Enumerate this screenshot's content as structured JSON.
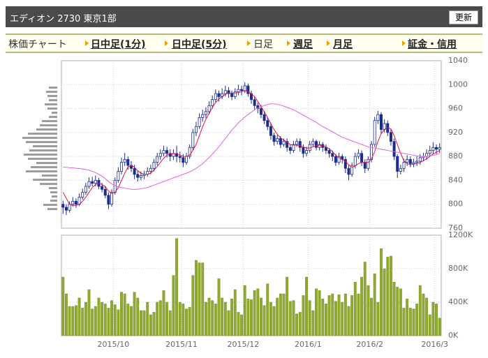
{
  "header": {
    "title": "エディオン 2730 東京1部",
    "button": "更新"
  },
  "nav": {
    "label": "株価チャート",
    "tabs": [
      "日中足(1分)",
      "日中足(5分)",
      "日足",
      "週足",
      "月足",
      "証金・信用"
    ]
  },
  "chart_data": [
    {
      "type": "candlestick",
      "color": "#1c2d8c",
      "ohlc": [
        [
          800,
          806,
          784,
          795
        ],
        [
          795,
          800,
          782,
          790
        ],
        [
          790,
          805,
          786,
          800
        ],
        [
          800,
          812,
          796,
          805
        ],
        [
          805,
          810,
          794,
          800
        ],
        [
          800,
          818,
          797,
          812
        ],
        [
          812,
          826,
          808,
          820
        ],
        [
          820,
          836,
          816,
          830
        ],
        [
          830,
          845,
          826,
          838
        ],
        [
          838,
          846,
          830,
          835
        ],
        [
          835,
          848,
          830,
          840
        ],
        [
          840,
          844,
          825,
          830
        ],
        [
          830,
          836,
          820,
          825
        ],
        [
          825,
          830,
          810,
          815
        ],
        [
          815,
          820,
          792,
          800
        ],
        [
          800,
          825,
          796,
          820
        ],
        [
          820,
          845,
          816,
          840
        ],
        [
          840,
          862,
          836,
          855
        ],
        [
          855,
          878,
          850,
          870
        ],
        [
          870,
          886,
          864,
          875
        ],
        [
          875,
          880,
          858,
          865
        ],
        [
          865,
          872,
          854,
          860
        ],
        [
          860,
          866,
          842,
          850
        ],
        [
          850,
          856,
          838,
          845
        ],
        [
          845,
          855,
          840,
          848
        ],
        [
          848,
          856,
          842,
          850
        ],
        [
          850,
          862,
          846,
          855
        ],
        [
          855,
          866,
          850,
          860
        ],
        [
          860,
          876,
          855,
          870
        ],
        [
          870,
          886,
          865,
          880
        ],
        [
          880,
          892,
          874,
          885
        ],
        [
          885,
          898,
          880,
          890
        ],
        [
          890,
          896,
          878,
          885
        ],
        [
          885,
          892,
          872,
          880
        ],
        [
          880,
          892,
          874,
          885
        ],
        [
          885,
          898,
          870,
          880
        ],
        [
          880,
          888,
          870,
          878
        ],
        [
          878,
          884,
          862,
          870
        ],
        [
          870,
          886,
          866,
          880
        ],
        [
          880,
          900,
          876,
          895
        ],
        [
          895,
          926,
          890,
          920
        ],
        [
          920,
          938,
          914,
          930
        ],
        [
          930,
          952,
          926,
          945
        ],
        [
          945,
          958,
          938,
          950
        ],
        [
          950,
          962,
          944,
          955
        ],
        [
          955,
          972,
          950,
          965
        ],
        [
          965,
          982,
          960,
          975
        ],
        [
          975,
          992,
          970,
          985
        ],
        [
          985,
          990,
          972,
          980
        ],
        [
          980,
          994,
          976,
          985
        ],
        [
          985,
          998,
          980,
          990
        ],
        [
          990,
          996,
          978,
          985
        ],
        [
          985,
          990,
          974,
          980
        ],
        [
          980,
          994,
          976,
          988
        ],
        [
          988,
          1000,
          982,
          992
        ],
        [
          992,
          998,
          982,
          990
        ],
        [
          990,
          1004,
          986,
          998
        ],
        [
          998,
          1002,
          980,
          985
        ],
        [
          985,
          990,
          968,
          975
        ],
        [
          975,
          980,
          958,
          965
        ],
        [
          965,
          970,
          952,
          960
        ],
        [
          960,
          966,
          944,
          950
        ],
        [
          950,
          956,
          934,
          940
        ],
        [
          940,
          946,
          924,
          930
        ],
        [
          930,
          936,
          908,
          915
        ],
        [
          915,
          920,
          898,
          905
        ],
        [
          905,
          916,
          900,
          910
        ],
        [
          910,
          914,
          894,
          900
        ],
        [
          900,
          910,
          896,
          905
        ],
        [
          905,
          910,
          888,
          895
        ],
        [
          895,
          900,
          884,
          890
        ],
        [
          890,
          906,
          886,
          900
        ],
        [
          900,
          910,
          896,
          905
        ],
        [
          905,
          910,
          888,
          895
        ],
        [
          895,
          900,
          878,
          885
        ],
        [
          885,
          896,
          880,
          890
        ],
        [
          890,
          906,
          886,
          900
        ],
        [
          900,
          910,
          896,
          905
        ],
        [
          905,
          908,
          890,
          895
        ],
        [
          895,
          906,
          890,
          900
        ],
        [
          900,
          904,
          888,
          895
        ],
        [
          895,
          900,
          884,
          890
        ],
        [
          890,
          894,
          878,
          885
        ],
        [
          885,
          890,
          872,
          880
        ],
        [
          880,
          884,
          864,
          870
        ],
        [
          870,
          886,
          866,
          880
        ],
        [
          880,
          884,
          868,
          875
        ],
        [
          875,
          880,
          852,
          860
        ],
        [
          860,
          866,
          840,
          850
        ],
        [
          850,
          870,
          846,
          865
        ],
        [
          865,
          886,
          860,
          880
        ],
        [
          880,
          892,
          876,
          885
        ],
        [
          885,
          890,
          864,
          870
        ],
        [
          870,
          875,
          852,
          860
        ],
        [
          860,
          880,
          856,
          875
        ],
        [
          875,
          906,
          870,
          900
        ],
        [
          900,
          946,
          896,
          940
        ],
        [
          940,
          956,
          934,
          950
        ],
        [
          950,
          954,
          918,
          925
        ],
        [
          925,
          942,
          920,
          935
        ],
        [
          935,
          940,
          914,
          920
        ],
        [
          920,
          926,
          898,
          905
        ],
        [
          905,
          910,
          874,
          880
        ],
        [
          880,
          884,
          844,
          855
        ],
        [
          855,
          866,
          850,
          860
        ],
        [
          860,
          876,
          854,
          870
        ],
        [
          870,
          882,
          864,
          875
        ],
        [
          875,
          880,
          862,
          868
        ],
        [
          868,
          876,
          862,
          870
        ],
        [
          870,
          880,
          864,
          872
        ],
        [
          872,
          884,
          866,
          878
        ],
        [
          878,
          886,
          872,
          880
        ],
        [
          880,
          892,
          874,
          885
        ],
        [
          885,
          898,
          880,
          890
        ],
        [
          890,
          904,
          884,
          895
        ],
        [
          895,
          900,
          884,
          892
        ],
        [
          892,
          902,
          886,
          895
        ]
      ],
      "series": [
        {
          "color": "#e0104a",
          "values": [
            820,
            810,
            800,
            798,
            798,
            800,
            805,
            812,
            820,
            828,
            833,
            835,
            833,
            830,
            822,
            818,
            820,
            828,
            840,
            852,
            862,
            865,
            862,
            856,
            852,
            850,
            850,
            852,
            857,
            863,
            870,
            877,
            882,
            884,
            885,
            884,
            882,
            880,
            880,
            882,
            890,
            900,
            915,
            930,
            942,
            952,
            962,
            970,
            976,
            980,
            984,
            986,
            986,
            986,
            987,
            988,
            990,
            988,
            985,
            980,
            972,
            963,
            955,
            945,
            935,
            925,
            917,
            911,
            907,
            904,
            900,
            899,
            899,
            898,
            896,
            894,
            894,
            896,
            898,
            899,
            898,
            896,
            893,
            888,
            882,
            878,
            875,
            872,
            866,
            862,
            864,
            868,
            870,
            870,
            870,
            876,
            888,
            905,
            918,
            925,
            928,
            926,
            915,
            900,
            885,
            873,
            868,
            866,
            867,
            868,
            870,
            873,
            876,
            880,
            884,
            887,
            890
          ]
        },
        {
          "color": "#e060e0",
          "values": [
            862,
            862,
            861,
            861,
            860,
            860,
            859,
            858,
            857,
            855,
            853,
            850,
            847,
            843,
            838,
            834,
            831,
            829,
            828,
            827,
            826,
            825,
            825,
            825,
            826,
            827,
            828,
            830,
            832,
            834,
            836,
            838,
            840,
            842,
            844,
            846,
            848,
            850,
            852,
            854,
            857,
            860,
            864,
            868,
            873,
            878,
            884,
            890,
            896,
            903,
            910,
            917,
            924,
            930,
            936,
            941,
            946,
            950,
            954,
            958,
            961,
            963,
            965,
            967,
            968,
            968,
            967,
            966,
            964,
            962,
            960,
            958,
            955,
            952,
            949,
            946,
            943,
            940,
            937,
            933,
            930,
            927,
            924,
            921,
            918,
            915,
            912,
            910,
            908,
            906,
            904,
            902,
            900,
            898,
            896,
            895,
            894,
            893,
            892,
            891,
            890,
            889,
            888,
            887,
            886,
            885,
            884,
            883,
            882,
            881,
            880,
            880,
            880,
            881,
            882,
            883,
            885
          ]
        }
      ],
      "ylim": [
        760,
        1040
      ],
      "yticks": [
        760,
        800,
        840,
        880,
        920,
        960,
        1000,
        1040
      ],
      "xticks": [
        {
          "value": 16,
          "label": "2015/10"
        },
        {
          "value": 37,
          "label": "2015/11"
        },
        {
          "value": 56,
          "label": "2015/12"
        },
        {
          "value": 76,
          "label": "2016/1"
        },
        {
          "value": 95,
          "label": "2016/2"
        },
        {
          "value": 115,
          "label": "2016/3"
        }
      ],
      "grid": true,
      "volume_profile": {
        "color": "#9a9a9a",
        "levels": [
          792,
          799,
          806,
          813,
          820,
          827,
          834,
          841,
          848,
          855,
          862,
          869,
          876,
          883,
          890,
          897,
          904,
          911,
          918,
          925,
          932,
          939,
          946,
          953,
          960,
          967,
          974,
          981,
          988,
          995
        ],
        "values": [
          14,
          20,
          10,
          8,
          10,
          12,
          25,
          35,
          22,
          45,
          38,
          30,
          42,
          48,
          40,
          35,
          45,
          50,
          42,
          30,
          25,
          22,
          12,
          8,
          14,
          18,
          12,
          14,
          16,
          12
        ]
      }
    },
    {
      "type": "bar",
      "color": "#8faa2e",
      "values": [
        700000,
        500000,
        350000,
        350000,
        360000,
        450000,
        330000,
        400000,
        550000,
        320000,
        350000,
        450000,
        400000,
        380000,
        330000,
        420000,
        370000,
        310000,
        520000,
        500000,
        380000,
        350000,
        520000,
        450000,
        300000,
        300000,
        400000,
        250000,
        280000,
        400000,
        420000,
        540000,
        400000,
        300000,
        720000,
        1160000,
        400000,
        380000,
        320000,
        340000,
        720000,
        900000,
        870000,
        870000,
        400000,
        450000,
        420000,
        380000,
        680000,
        450000,
        400000,
        300000,
        440000,
        550000,
        280000,
        250000,
        600000,
        440000,
        430000,
        540000,
        560000,
        450000,
        360000,
        620000,
        400000,
        350000,
        450000,
        500000,
        500000,
        700000,
        410000,
        420000,
        260000,
        280000,
        480000,
        700000,
        420000,
        300000,
        560000,
        540000,
        440000,
        380000,
        480000,
        500000,
        410000,
        490000,
        400000,
        500000,
        350000,
        480000,
        640000,
        500000,
        700000,
        880000,
        600000,
        450000,
        740000,
        400000,
        1040000,
        800000,
        940000,
        950000,
        640000,
        580000,
        560000,
        330000,
        440000,
        330000,
        320000,
        380000,
        600000,
        500000,
        450000,
        250000,
        400000,
        380000,
        210000
      ],
      "ylim": [
        0,
        1200000
      ],
      "yticks": [
        {
          "value": 0,
          "label": "0K"
        },
        {
          "value": 400000,
          "label": "400K"
        },
        {
          "value": 800000,
          "label": "800K"
        },
        {
          "value": 1200000,
          "label": "1200K"
        }
      ],
      "grid": true
    }
  ]
}
